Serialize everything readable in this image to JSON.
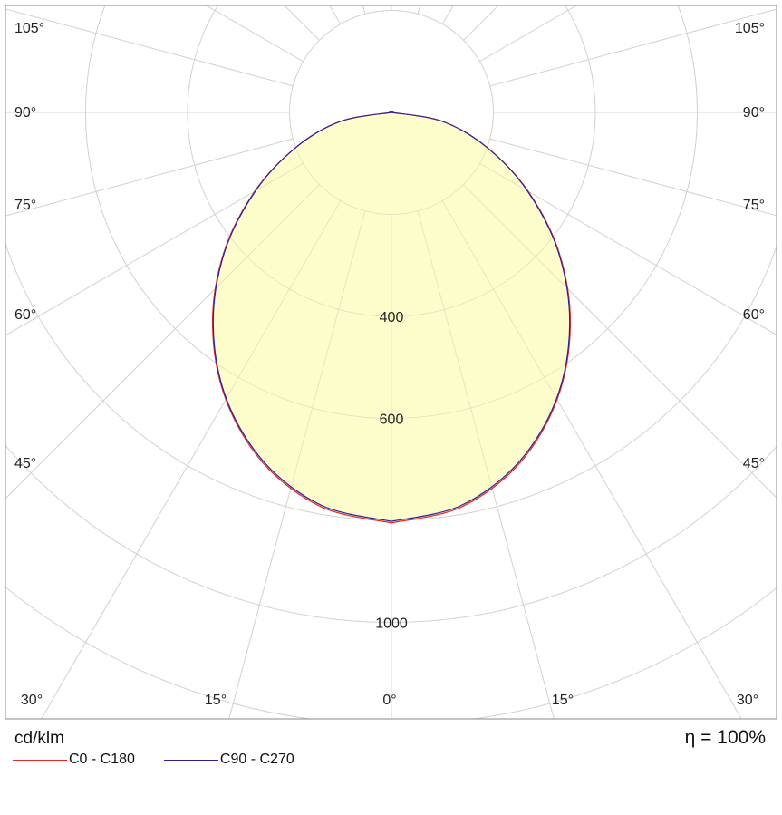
{
  "chart_data": {
    "type": "polar",
    "unit_label": "cd/klm",
    "efficiency_label": "η = 100%",
    "radial_tick_labels": [
      "400",
      "600",
      "1000"
    ],
    "radial_ticks": [
      200,
      400,
      600,
      800,
      1000,
      1200
    ],
    "angle_labels_side": [
      "105°",
      "90°",
      "75°",
      "60°",
      "45°"
    ],
    "angle_labels_bottom": [
      "30°",
      "15°",
      "0°",
      "15°",
      "30°"
    ],
    "angles_deg": [
      0,
      15,
      30,
      45,
      60,
      75,
      90
    ],
    "series": [
      {
        "name": "C0 - C180",
        "color": "#e8262b",
        "angles": [
          0,
          10,
          20,
          30,
          40,
          50,
          60,
          70,
          80,
          90
        ],
        "values": [
          805,
          786,
          733,
          650,
          546,
          430,
          310,
          199,
          102,
          0
        ]
      },
      {
        "name": "C90 - C270",
        "color": "#2a2296",
        "angles": [
          0,
          10,
          20,
          30,
          40,
          50,
          60,
          70,
          80,
          90
        ],
        "values": [
          802,
          783,
          730,
          648,
          544,
          428,
          308,
          198,
          101,
          0
        ]
      }
    ],
    "fill_color": "#fdfdc5",
    "grid": true
  }
}
